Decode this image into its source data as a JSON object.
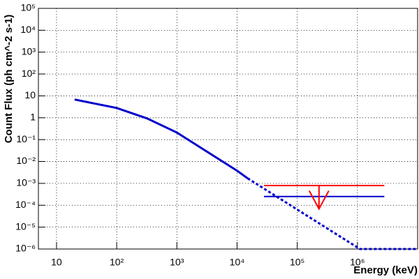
{
  "chart_data": {
    "type": "line",
    "x_label": "Energy (keV)",
    "y_label": "Count Flux (ph cm^-2 s-1)",
    "xlog": true,
    "ylog": true,
    "grid": true,
    "xlim": [
      5,
      10000000
    ],
    "ylim": [
      1e-06,
      100000
    ],
    "xticks": [
      10,
      {
        "value": 100,
        "label": "10²"
      },
      {
        "value": 1000,
        "label": "10³"
      },
      {
        "value": 10000,
        "label": "10⁴"
      },
      {
        "value": 100000,
        "label": "10⁵"
      },
      {
        "value": 1000000,
        "label": "10⁶"
      }
    ],
    "yticks": [
      {
        "value": 1e-06,
        "label": "10⁻⁶"
      },
      {
        "value": 1e-05,
        "label": "10⁻⁵"
      },
      {
        "value": 0.0001,
        "label": "10⁻⁴"
      },
      {
        "value": 0.001,
        "label": "10⁻³"
      },
      {
        "value": 0.01,
        "label": "10⁻²"
      },
      {
        "value": 0.1,
        "label": "10⁻¹"
      },
      1,
      10,
      {
        "value": 100,
        "label": "10²"
      },
      {
        "value": 1000,
        "label": "10³"
      },
      {
        "value": 10000,
        "label": "10⁴"
      },
      {
        "value": 100000,
        "label": "10⁵"
      }
    ],
    "series": [
      {
        "color": "#0000cc",
        "dashed": false,
        "x": [
          20,
          100,
          320,
          1000,
          10000,
          15000
        ],
        "values": [
          6.8,
          2.8,
          0.93,
          0.21,
          0.0038,
          0.0017
        ]
      },
      {
        "color": "#0000cc",
        "dashed": true,
        "x": [
          15000,
          1100000,
          10000000
        ],
        "values": [
          0.0017,
          1e-06,
          1e-06
        ]
      },
      {
        "color": "#0000cc",
        "dashed": false,
        "x": [
          28000,
          2800000
        ],
        "values": [
          0.00025,
          0.00025
        ]
      },
      {
        "color": "#ff0000",
        "dashed": false,
        "x": [
          28000,
          2800000
        ],
        "values": [
          0.0008,
          0.0008
        ]
      }
    ],
    "arrows": [
      {
        "color": "#ff0000",
        "x": 230000,
        "from": 0.0008,
        "to": 6.8e-05
      }
    ]
  }
}
